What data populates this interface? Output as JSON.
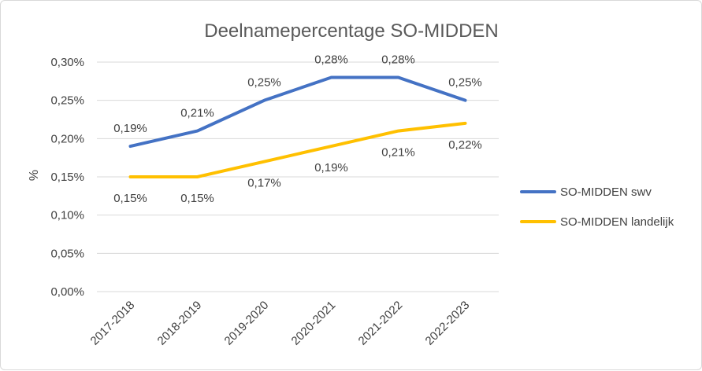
{
  "chart_data": {
    "type": "line",
    "title": "Deelnamepercentage SO-MIDDEN",
    "xlabel": "",
    "ylabel": "%",
    "categories": [
      "2017-2018",
      "2018-2019",
      "2019-2020",
      "2020-2021",
      "2021-2022",
      "2022-2023"
    ],
    "ylim": [
      0,
      0.3
    ],
    "yticks": [
      0,
      0.05,
      0.1,
      0.15,
      0.2,
      0.25,
      0.3
    ],
    "ytick_labels": [
      "0,00%",
      "0,05%",
      "0,10%",
      "0,15%",
      "0,20%",
      "0,25%",
      "0,30%"
    ],
    "grid": true,
    "legend_position": "right",
    "series": [
      {
        "name": "SO-MIDDEN swv",
        "color": "#4472C4",
        "values": [
          0.19,
          0.21,
          0.25,
          0.28,
          0.28,
          0.25
        ],
        "labels": [
          "0,19%",
          "0,21%",
          "0,25%",
          "0,28%",
          "0,28%",
          "0,25%"
        ],
        "label_position": "above"
      },
      {
        "name": "SO-MIDDEN landelijk",
        "color": "#FFC000",
        "values": [
          0.15,
          0.15,
          0.17,
          0.19,
          0.21,
          0.22
        ],
        "labels": [
          "0,15%",
          "0,15%",
          "0,17%",
          "0,19%",
          "0,21%",
          "0,22%"
        ],
        "label_position": "below"
      }
    ]
  }
}
